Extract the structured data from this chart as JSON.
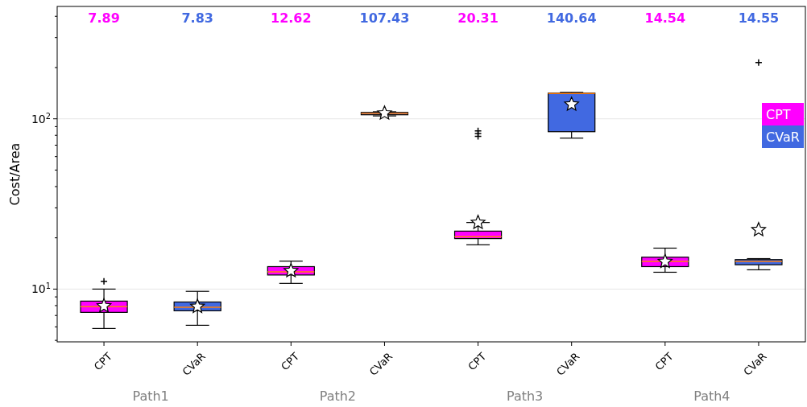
{
  "chart_data": {
    "type": "box",
    "ylabel": "Cost/Area",
    "log": true,
    "grid": "y",
    "legend": "right",
    "categories": [
      "CPT",
      "CVaR",
      "CPT",
      "CVaR",
      "CPT",
      "CVaR",
      "CPT",
      "CVaR"
    ],
    "annotations": [
      "Path1",
      "Path2",
      "Path3",
      "Path4"
    ],
    "ylim": [
      4.9,
      457
    ],
    "yticks": [
      {
        "value": 5,
        "label": null
      },
      {
        "value": 6,
        "label": null
      },
      {
        "value": 7,
        "label": null
      },
      {
        "value": 8,
        "label": null
      },
      {
        "value": 9,
        "label": null
      },
      {
        "value": 10,
        "label": "10$^{1}$"
      },
      {
        "value": 20,
        "label": null
      },
      {
        "value": 30,
        "label": null
      },
      {
        "value": 40,
        "label": null
      },
      {
        "value": 50,
        "label": null
      },
      {
        "value": 60,
        "label": null
      },
      {
        "value": 70,
        "label": null
      },
      {
        "value": 80,
        "label": null
      },
      {
        "value": 90,
        "label": null
      },
      {
        "value": 100,
        "label": "10$^{2}$"
      },
      {
        "value": 200,
        "label": null
      },
      {
        "value": 300,
        "label": null
      },
      {
        "value": 400,
        "label": null
      }
    ],
    "series": [
      {
        "name": "CPT",
        "color": "#ff00ff",
        "value_labels": [
          "7.89",
          null,
          "12.62",
          null,
          "20.31",
          null,
          "14.54",
          null
        ],
        "boxes": [
          {
            "low": 5.87,
            "q1": 7.3,
            "median": 7.89,
            "q3": 8.5,
            "high": 10.0,
            "mean": 7.96,
            "outliers": [
              11.1
            ]
          },
          null,
          {
            "low": 10.8,
            "q1": 12.1,
            "median": 12.62,
            "q3": 13.55,
            "high": 14.6,
            "mean": 12.8
          },
          null,
          {
            "low": 18.2,
            "q1": 19.8,
            "median": 20.31,
            "q3": 21.9,
            "high": 24.6,
            "mean": 24.6,
            "outliers": [
              79,
              82,
              85
            ]
          },
          null,
          {
            "low": 12.56,
            "q1": 13.55,
            "median": 14.54,
            "q3": 15.4,
            "high": 17.4,
            "mean": 14.5
          },
          null
        ]
      },
      {
        "name": "CVaR",
        "color": "#4169e1",
        "value_labels": [
          null,
          "7.83",
          null,
          "107.43",
          null,
          "140.64",
          null,
          "14.55"
        ],
        "boxes": [
          null,
          {
            "low": 6.13,
            "q1": 7.46,
            "median": 7.83,
            "q3": 8.4,
            "high": 9.7,
            "mean": 7.9
          },
          null,
          {
            "low": 104,
            "q1": 105.6,
            "median": 107.43,
            "q3": 109,
            "high": 110,
            "mean": 107.8
          },
          null,
          {
            "low": 77,
            "q1": 84,
            "median": 140.64,
            "q3": 141.6,
            "high": 143,
            "mean": 121.6
          },
          null,
          {
            "low": 12.98,
            "q1": 13.9,
            "median": 14.55,
            "q3": 14.9,
            "high": 15.1,
            "mean": 22.3,
            "outliers": [
              214
            ]
          }
        ]
      }
    ]
  }
}
